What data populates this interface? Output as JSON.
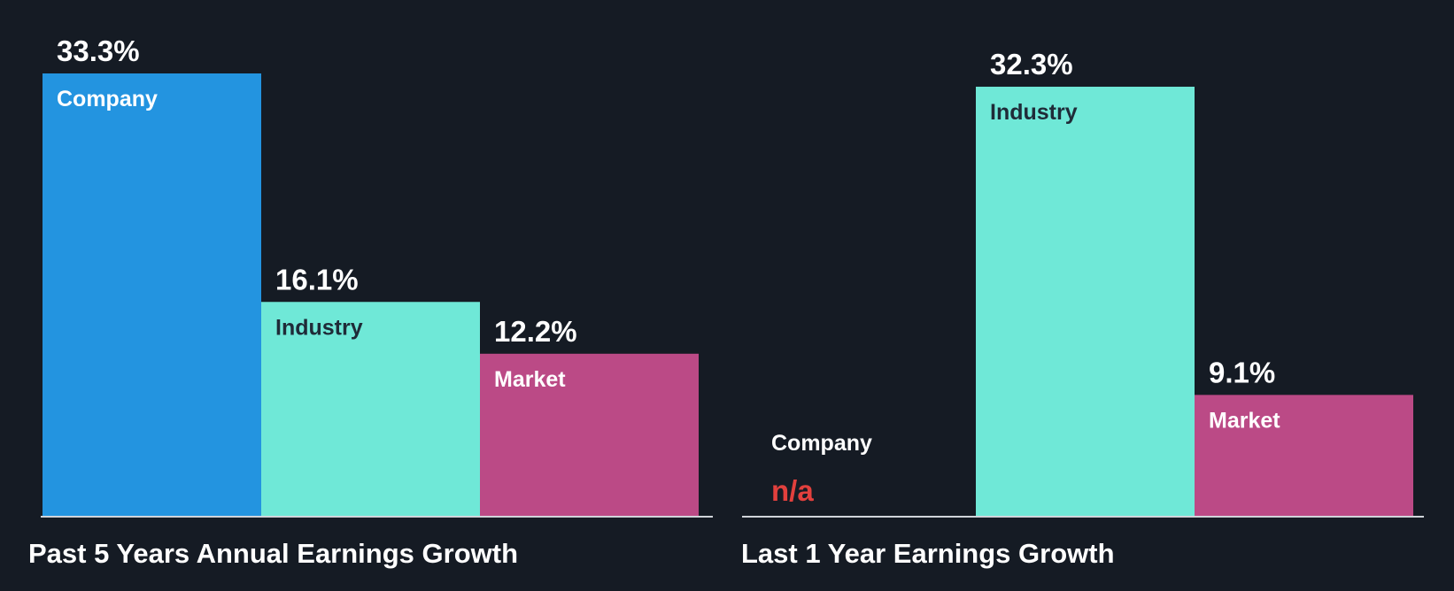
{
  "colors": {
    "background": "#151b24",
    "company": "#2394e0",
    "industry": "#6fe8d7",
    "market": "#bb4a86",
    "axis": "#d0d4da",
    "value_text": "#ffffff",
    "na_text": "#e2403d",
    "label_on_light": "#1f2b38",
    "label_on_dark": "#ffffff"
  },
  "chart_data": [
    {
      "type": "bar",
      "title": "Past 5 Years Annual Earnings Growth",
      "categories": [
        "Company",
        "Industry",
        "Market"
      ],
      "values": [
        33.3,
        16.1,
        12.2
      ],
      "value_labels": [
        "33.3%",
        "16.1%",
        "12.2%"
      ],
      "unit": "%",
      "ylim": [
        0,
        33.3
      ],
      "grid": false,
      "legend": "none"
    },
    {
      "type": "bar",
      "title": "Last 1 Year Earnings Growth",
      "categories": [
        "Company",
        "Industry",
        "Market"
      ],
      "values": [
        null,
        32.3,
        9.1
      ],
      "value_labels": [
        "n/a",
        "32.3%",
        "9.1%"
      ],
      "unit": "%",
      "ylim": [
        0,
        33.3
      ],
      "grid": false,
      "legend": "none"
    }
  ]
}
